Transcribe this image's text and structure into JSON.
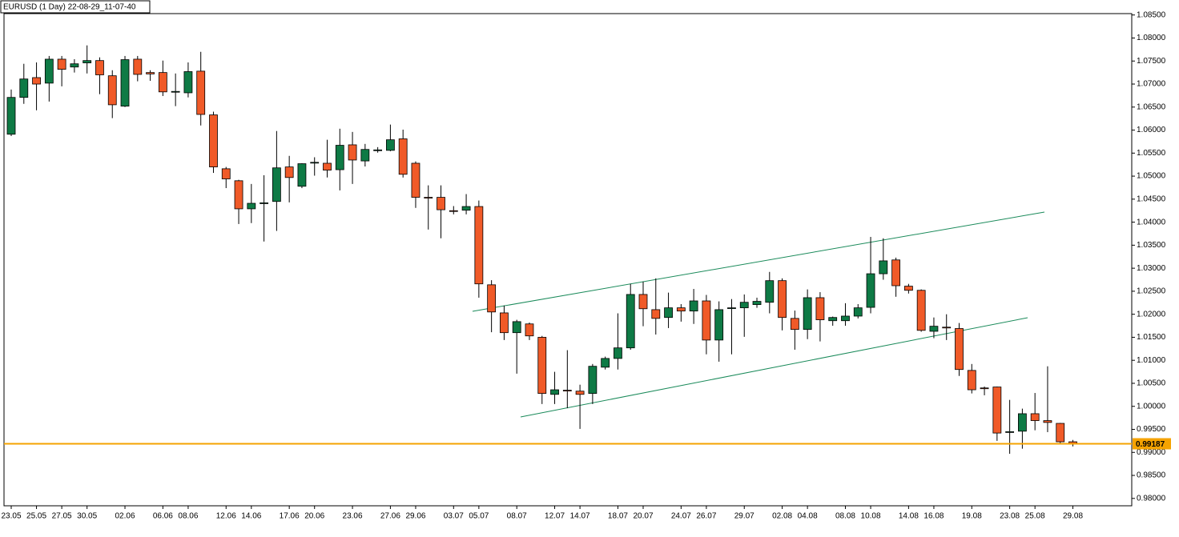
{
  "chart_data": {
    "type": "candlestick",
    "title": "EURUSD (1 Day) 22-08-29_11-07-40",
    "categories": [
      "23.05",
      null,
      "25.05",
      null,
      "27.05",
      null,
      "30.05",
      null,
      null,
      "02.06",
      null,
      null,
      "06.06",
      null,
      "08.06",
      null,
      null,
      "12.06",
      null,
      "14.06",
      null,
      null,
      "17.06",
      null,
      "20.06",
      null,
      null,
      "23.06",
      null,
      null,
      "27.06",
      null,
      "29.06",
      null,
      null,
      "03.07",
      null,
      "05.07",
      null,
      null,
      "08.07",
      null,
      null,
      "12.07",
      null,
      "14.07",
      null,
      null,
      "18.07",
      null,
      "20.07",
      null,
      null,
      "24.07",
      null,
      "26.07",
      null,
      null,
      "29.07",
      null,
      null,
      "02.08",
      null,
      "04.08",
      null,
      null,
      "08.08",
      null,
      "10.08",
      null,
      null,
      "14.08",
      null,
      "16.08",
      null,
      null,
      "19.08",
      null,
      null,
      "23.08",
      null,
      "25.08",
      null,
      null,
      "29.08"
    ],
    "open": [
      1.0591,
      1.0671,
      1.0714,
      1.0702,
      1.0754,
      1.0737,
      1.0746,
      1.0751,
      1.0718,
      1.0652,
      1.0754,
      1.0725,
      1.0725,
      1.0683,
      1.0681,
      1.0728,
      1.0633,
      1.0516,
      1.049,
      1.0429,
      1.0441,
      1.0445,
      1.052,
      1.0478,
      1.0529,
      1.0528,
      1.0514,
      1.0568,
      1.0533,
      1.0556,
      1.0556,
      1.0581,
      1.0528,
      1.0454,
      1.0454,
      1.0425,
      1.0426,
      1.0434,
      1.0264,
      1.0203,
      1.016,
      1.0179,
      1.015,
      1.0026,
      1.0035,
      1.0033,
      1.0028,
      1.0085,
      1.0104,
      1.0127,
      1.0243,
      1.021,
      1.0193,
      1.0214,
      1.0207,
      1.0229,
      1.0144,
      1.0213,
      1.0214,
      1.0221,
      1.0226,
      1.0273,
      1.0191,
      1.0167,
      1.0236,
      1.0186,
      1.0186,
      1.0196,
      1.0215,
      1.0288,
      1.0318,
      1.0261,
      1.0252,
      1.0163,
      1.0172,
      1.0169,
      1.0078,
      1.004,
      1.0042,
      0.9944,
      0.9946,
      0.9984,
      0.9969,
      0.9963,
      0.9923
    ],
    "high": [
      1.0688,
      1.0744,
      1.0747,
      1.0761,
      1.0761,
      1.0754,
      1.0784,
      1.0758,
      1.073,
      1.0761,
      1.0761,
      1.073,
      1.0751,
      1.0723,
      1.0747,
      1.077,
      1.064,
      1.052,
      1.0492,
      1.0483,
      1.0502,
      1.0598,
      1.0544,
      1.0528,
      1.0541,
      1.0579,
      1.0603,
      1.0596,
      1.057,
      1.0563,
      1.0612,
      1.0601,
      1.0532,
      1.048,
      1.048,
      1.0435,
      1.0461,
      1.0447,
      1.0274,
      1.0219,
      1.0188,
      1.0182,
      1.0153,
      1.0075,
      1.0122,
      1.0047,
      1.0092,
      1.0108,
      1.0202,
      1.0266,
      1.0271,
      1.0278,
      1.0247,
      1.0222,
      1.0255,
      1.0242,
      1.0228,
      1.0233,
      1.0243,
      1.0236,
      1.0292,
      1.0278,
      1.0208,
      1.0254,
      1.0248,
      1.0195,
      1.0224,
      1.0222,
      1.0368,
      1.0365,
      1.0323,
      1.0266,
      1.0254,
      1.0193,
      1.02,
      1.0181,
      1.0092,
      1.0043,
      1.0043,
      1.0014,
      0.9995,
      1.0029,
      1.0087,
      0.9964,
      0.9927
    ],
    "low": [
      1.0587,
      1.0657,
      1.0643,
      1.0662,
      1.0695,
      1.0725,
      1.0723,
      1.0678,
      1.0626,
      1.065,
      1.0706,
      1.0707,
      1.0674,
      1.0652,
      1.0671,
      1.061,
      1.0507,
      1.0474,
      1.0396,
      1.0398,
      1.0358,
      1.0381,
      1.0443,
      1.0474,
      1.0501,
      1.0497,
      1.0469,
      1.0483,
      1.0521,
      1.0551,
      1.0554,
      1.0497,
      1.0431,
      1.0384,
      1.0365,
      1.0417,
      1.0417,
      1.0236,
      1.0161,
      1.0144,
      1.0071,
      1.0144,
      1.0005,
      1.0005,
      0.9996,
      0.9951,
      1.0005,
      1.008,
      1.008,
      1.0123,
      1.0174,
      1.0156,
      1.017,
      1.0184,
      1.0179,
      1.0113,
      1.0097,
      1.0113,
      1.0151,
      1.0214,
      1.0202,
      1.0165,
      1.0123,
      1.0146,
      1.0141,
      1.0175,
      1.0175,
      1.0191,
      1.0202,
      1.0275,
      1.0238,
      1.0245,
      1.0162,
      1.0148,
      1.0144,
      1.0066,
      1.0028,
      1.0024,
      0.9925,
      0.9897,
      0.9908,
      0.9948,
      0.9944,
      0.9918,
      0.9913
    ],
    "close": [
      1.0671,
      1.0711,
      1.07,
      1.0754,
      1.0732,
      1.0744,
      1.0751,
      1.072,
      1.0655,
      1.0753,
      1.0721,
      1.0722,
      1.0683,
      1.0684,
      1.0727,
      1.0634,
      1.052,
      1.0494,
      1.0429,
      1.0441,
      1.0442,
      1.0518,
      1.0497,
      1.0527,
      1.053,
      1.0513,
      1.0567,
      1.0535,
      1.0558,
      1.0557,
      1.0579,
      1.0504,
      1.0454,
      1.0453,
      1.0427,
      1.0424,
      1.0434,
      1.0266,
      1.0205,
      1.016,
      1.0184,
      1.0153,
      1.0028,
      1.0036,
      1.0034,
      1.0026,
      1.0087,
      1.0104,
      1.0127,
      1.0243,
      1.0212,
      1.0191,
      1.0214,
      1.0207,
      1.0229,
      1.0144,
      1.021,
      1.0214,
      1.0226,
      1.0228,
      1.0273,
      1.0193,
      1.0167,
      1.0236,
      1.0188,
      1.0193,
      1.0196,
      1.0214,
      1.0288,
      1.0316,
      1.0262,
      1.0252,
      1.0165,
      1.0174,
      1.0171,
      1.008,
      1.0036,
      1.0039,
      0.9942,
      0.9945,
      0.9984,
      0.9969,
      0.9965,
      0.9923,
      0.9919
    ],
    "up_color": "#0e7a45",
    "down_color": "#f05a28",
    "last_price": 0.99187,
    "last_price_color": "#f5a300",
    "ylim": [
      0.9784,
      1.0853
    ],
    "yticks": [
      {
        "value": 0.98,
        "label": "0.98000"
      },
      {
        "value": 0.985,
        "label": "0.98500"
      },
      {
        "value": 0.99,
        "label": "0.99000"
      },
      {
        "value": 0.995,
        "label": "0.99500"
      },
      {
        "value": 1.0,
        "label": "1.00000"
      },
      {
        "value": 1.005,
        "label": "1.00500"
      },
      {
        "value": 1.01,
        "label": "1.01000"
      },
      {
        "value": 1.015,
        "label": "1.01500"
      },
      {
        "value": 1.02,
        "label": "1.02000"
      },
      {
        "value": 1.025,
        "label": "1.02500"
      },
      {
        "value": 1.03,
        "label": "1.03000"
      },
      {
        "value": 1.035,
        "label": "1.03500"
      },
      {
        "value": 1.04,
        "label": "1.04000"
      },
      {
        "value": 1.045,
        "label": "1.04500"
      },
      {
        "value": 1.05,
        "label": "1.05000"
      },
      {
        "value": 1.055,
        "label": "1.05500"
      },
      {
        "value": 1.06,
        "label": "1.06000"
      },
      {
        "value": 1.065,
        "label": "1.06500"
      },
      {
        "value": 1.07,
        "label": "1.07000"
      },
      {
        "value": 1.075,
        "label": "1.07500"
      },
      {
        "value": 1.08,
        "label": "1.08000"
      },
      {
        "value": 1.085,
        "label": "1.08500"
      }
    ]
  }
}
